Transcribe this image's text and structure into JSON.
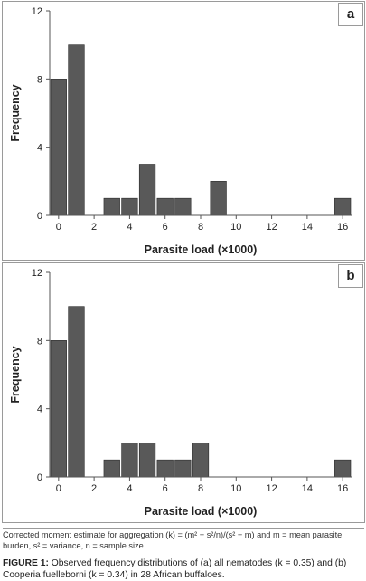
{
  "chart_data": [
    {
      "type": "bar",
      "panel_label": "a",
      "x": [
        0,
        1,
        2,
        3,
        4,
        5,
        6,
        7,
        8,
        9,
        10,
        11,
        12,
        13,
        14,
        15,
        16
      ],
      "values": [
        8,
        10,
        0,
        1,
        1,
        3,
        1,
        1,
        0,
        2,
        0,
        0,
        0,
        0,
        0,
        0,
        1
      ],
      "x_ticks": [
        "0",
        "2",
        "4",
        "6",
        "8",
        "10",
        "12",
        "14",
        "16"
      ],
      "y_ticks": [
        "0",
        "4",
        "8",
        "12"
      ],
      "xlabel": "Parasite load (×1000)",
      "ylabel": "Frequency",
      "ylim": [
        0,
        12
      ],
      "bar_color": "#595959",
      "grid": false
    },
    {
      "type": "bar",
      "panel_label": "b",
      "x": [
        0,
        1,
        2,
        3,
        4,
        5,
        6,
        7,
        8,
        9,
        10,
        11,
        12,
        13,
        14,
        15,
        16
      ],
      "values": [
        8,
        10,
        0,
        1,
        2,
        2,
        1,
        1,
        2,
        0,
        0,
        0,
        0,
        0,
        0,
        0,
        1
      ],
      "x_ticks": [
        "0",
        "2",
        "4",
        "6",
        "8",
        "10",
        "12",
        "14",
        "16"
      ],
      "y_ticks": [
        "0",
        "4",
        "8",
        "12"
      ],
      "xlabel": "Parasite load (×1000)",
      "ylabel": "Frequency",
      "ylim": [
        0,
        12
      ],
      "bar_color": "#595959",
      "grid": false
    }
  ],
  "caption": {
    "note": "Corrected moment estimate for aggregation (k) = (m² − s²/n)/(s² − m) and m = mean parasite burden, s² = variance, n = sample size.",
    "figure_label": "FIGURE 1:",
    "figure_text": "Observed frequency distributions of (a) all nematodes (k = 0.35) and (b) Cooperia fuelleborni (k = 0.34) in 28 African buffaloes."
  }
}
